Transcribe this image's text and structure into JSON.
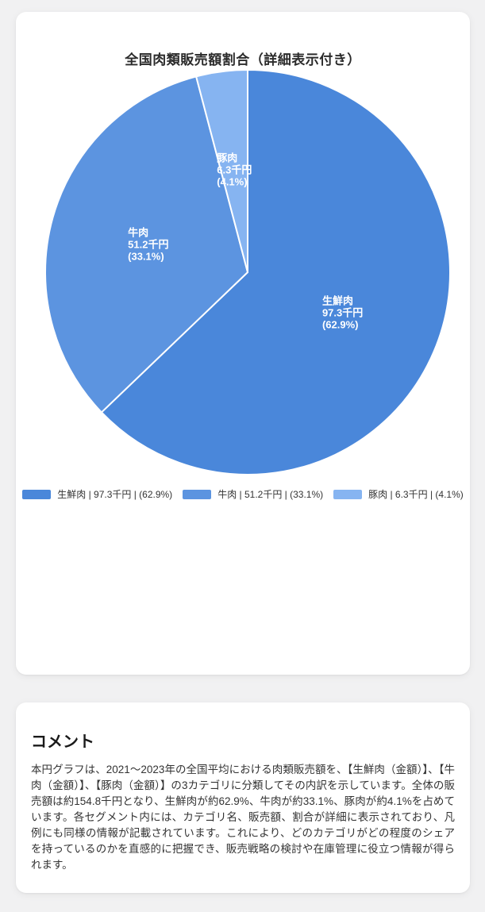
{
  "window": {
    "background_color": "#f1f1f2",
    "card_color": "#ffffff"
  },
  "chart_card": {
    "title": "全国肉類販売額割合（詳細表示付き）"
  },
  "chart_data": {
    "type": "pie",
    "title": "全国肉類販売額割合（詳細表示付き）",
    "unit": "千円",
    "start_angle_deg": 0,
    "direction": "clockwise",
    "legend_position": "bottom",
    "label_style": "category, value, percent inside slice",
    "slices": [
      {
        "category": "生鮮肉",
        "value": 97.3,
        "value_label": "97.3千円",
        "percent": 62.9,
        "percent_label": "(62.9%)",
        "color": "#4a87da",
        "legend_label": "生鮮肉 | 97.3千円 | (62.9%)"
      },
      {
        "category": "牛肉",
        "value": 51.2,
        "value_label": "51.2千円",
        "percent": 33.1,
        "percent_label": "(33.1%)",
        "color": "#5c94e0",
        "legend_label": "牛肉 | 51.2千円 | (33.1%)"
      },
      {
        "category": "豚肉",
        "value": 6.3,
        "value_label": "6.3千円",
        "percent": 4.1,
        "percent_label": "(4.1%)",
        "color": "#86b4f1",
        "legend_label": "豚肉 | 6.3千円 | (4.1%)"
      }
    ]
  },
  "comment_card": {
    "heading": "コメント",
    "body": "本円グラフは、2021〜2023年の全国平均における肉類販売額を、【生鮮肉（金額）】、【牛肉（金額）】、【豚肉（金額）】の3カテゴリに分類してその内訳を示しています。全体の販売額は約154.8千円となり、生鮮肉が約62.9%、牛肉が約33.1%、豚肉が約4.1%を占めています。各セグメント内には、カテゴリ名、販売額、割合が詳細に表示されており、凡例にも同様の情報が記載されています。これにより、どのカテゴリがどの程度のシェアを持っているのかを直感的に把握でき、販売戦略の検討や在庫管理に役立つ情報が得られます。"
  }
}
